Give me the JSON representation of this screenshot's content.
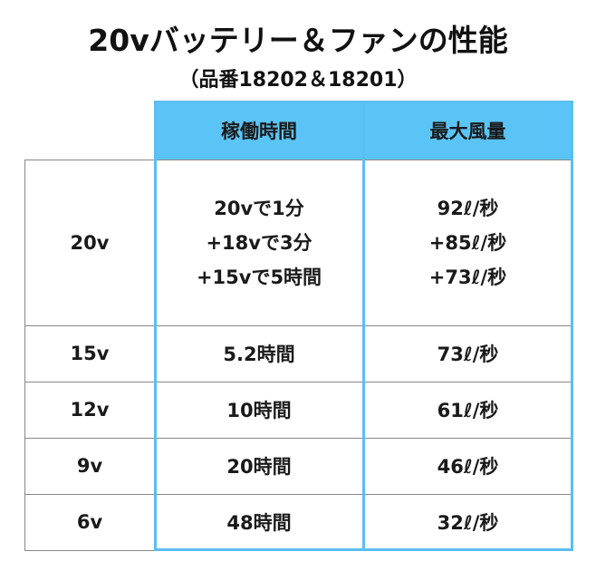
{
  "title": "20vバッテリー＆ファンの性能",
  "subtitle": "（品番18202＆18201）",
  "table": {
    "headers": [
      "稼働時間",
      "最大風量"
    ],
    "rows": [
      {
        "voltage": "20v",
        "runtime": [
          "20vで1分",
          "+18vで3分",
          "+15vで5時間"
        ],
        "airflow": [
          "92ℓ/秒",
          "+85ℓ/秒",
          "+73ℓ/秒"
        ]
      },
      {
        "voltage": "15v",
        "runtime": [
          "5.2時間"
        ],
        "airflow": [
          "73ℓ/秒"
        ]
      },
      {
        "voltage": "12v",
        "runtime": [
          "10時間"
        ],
        "airflow": [
          "61ℓ/秒"
        ]
      },
      {
        "voltage": "9v",
        "runtime": [
          "20時間"
        ],
        "airflow": [
          "46ℓ/秒"
        ]
      },
      {
        "voltage": "6v",
        "runtime": [
          "48時間"
        ],
        "airflow": [
          "32ℓ/秒"
        ]
      }
    ]
  },
  "colors": {
    "header_bg": "#5bc4f6",
    "border_accent": "#5bbef0"
  }
}
